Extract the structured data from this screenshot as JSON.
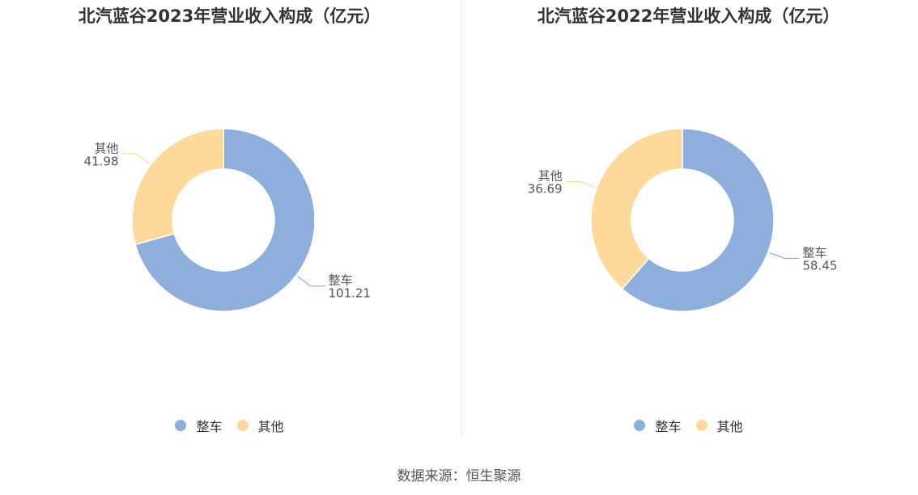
{
  "charts": [
    {
      "title": "北汽蓝谷2023年营业收入构成（亿元）"
    },
    {
      "title": "北汽蓝谷2022年营业收入构成（亿元）"
    }
  ],
  "legend": [
    {
      "label": "整车",
      "color": "#8eaedc"
    },
    {
      "label": "其他",
      "color": "#fdd99b"
    }
  ],
  "source": "数据来源：恒生聚源",
  "chart_data": [
    {
      "type": "pie",
      "title": "北汽蓝谷2023年营业收入构成（亿元）",
      "categories": [
        "整车",
        "其他"
      ],
      "values": [
        101.21,
        41.98
      ],
      "colors": [
        "#8eaedc",
        "#fdd99b"
      ],
      "donut": true,
      "legend_position": "bottom"
    },
    {
      "type": "pie",
      "title": "北汽蓝谷2022年营业收入构成（亿元）",
      "categories": [
        "整车",
        "其他"
      ],
      "values": [
        58.45,
        36.69
      ],
      "colors": [
        "#8eaedc",
        "#fdd99b"
      ],
      "donut": true,
      "legend_position": "bottom"
    }
  ]
}
